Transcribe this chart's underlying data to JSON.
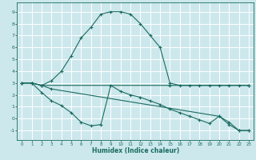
{
  "xlabel": "Humidex (Indice chaleur)",
  "ylabel": "",
  "xlim": [
    -0.5,
    23.5
  ],
  "ylim": [
    -1.8,
    9.8
  ],
  "yticks": [
    -1,
    0,
    1,
    2,
    3,
    4,
    5,
    6,
    7,
    8,
    9
  ],
  "xticks": [
    0,
    1,
    2,
    3,
    4,
    5,
    6,
    7,
    8,
    9,
    10,
    11,
    12,
    13,
    14,
    15,
    16,
    17,
    18,
    19,
    20,
    21,
    22,
    23
  ],
  "bg_color": "#cce8ec",
  "grid_color": "#ffffff",
  "line_color": "#1a6b60",
  "line1_x": [
    0,
    1,
    2,
    3,
    4,
    5,
    6,
    7,
    8,
    9,
    10,
    11,
    12,
    13,
    14,
    15,
    16,
    17,
    18,
    19,
    20,
    21,
    22,
    23
  ],
  "line1_y": [
    3.0,
    3.0,
    2.8,
    3.2,
    4.0,
    5.3,
    6.8,
    7.7,
    8.8,
    9.0,
    9.0,
    8.8,
    8.0,
    7.0,
    6.0,
    3.0,
    2.8,
    2.8,
    2.8,
    2.8,
    2.8,
    2.8,
    2.8,
    2.8
  ],
  "line2_x": [
    0,
    1,
    2,
    3,
    4,
    5,
    6,
    7,
    8,
    9,
    10,
    11,
    12,
    13,
    14,
    15,
    16,
    17,
    18,
    19,
    20,
    21,
    22,
    23
  ],
  "line2_y": [
    3.0,
    3.0,
    2.2,
    1.5,
    1.1,
    0.5,
    -0.3,
    -0.6,
    -0.5,
    2.8,
    2.3,
    2.0,
    1.8,
    1.5,
    1.2,
    0.8,
    0.5,
    0.2,
    -0.1,
    -0.4,
    0.2,
    -0.5,
    -1.0,
    -1.0
  ],
  "line3_x": [
    0,
    1,
    2,
    15,
    23
  ],
  "line3_y": [
    3.0,
    3.0,
    2.8,
    2.8,
    2.8
  ],
  "line4_x": [
    0,
    1,
    2,
    3,
    20,
    21,
    22,
    23
  ],
  "line4_y": [
    3.0,
    3.0,
    2.8,
    2.5,
    0.2,
    -0.3,
    -1.0,
    -1.0
  ]
}
